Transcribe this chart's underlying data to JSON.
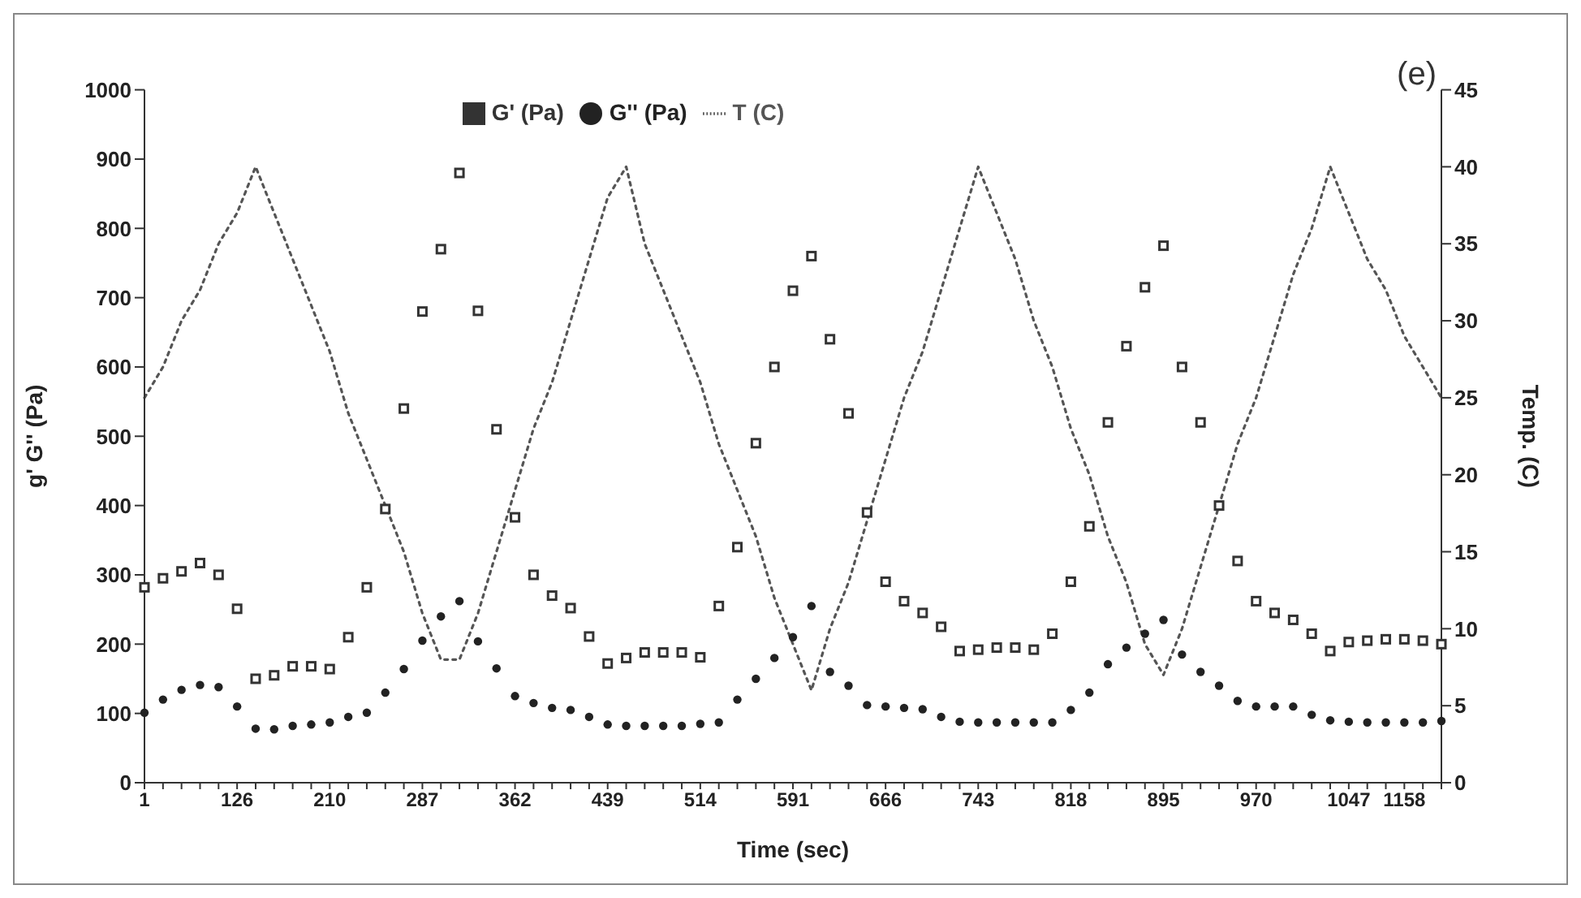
{
  "chart_data": {
    "type": "scatter",
    "xlabel": "Time (sec)",
    "ylabel": "g' G'' (Pa)",
    "y2label": "Temp. (C)",
    "annotations": [
      "(e)"
    ],
    "categories": [
      "1",
      null,
      null,
      null,
      null,
      "126",
      null,
      null,
      null,
      null,
      "210",
      null,
      null,
      null,
      null,
      "287",
      null,
      null,
      null,
      null,
      "362",
      null,
      null,
      null,
      null,
      "439",
      null,
      null,
      null,
      null,
      "514",
      null,
      null,
      null,
      null,
      "591",
      null,
      null,
      null,
      null,
      "666",
      null,
      null,
      null,
      null,
      "743",
      null,
      null,
      null,
      null,
      "818",
      null,
      null,
      null,
      null,
      "895",
      null,
      null,
      null,
      null,
      "970",
      null,
      null,
      null,
      null,
      "1047",
      null,
      null,
      "1158",
      null,
      null
    ],
    "ylim": [
      0,
      1000
    ],
    "yticks": [
      0,
      100,
      200,
      300,
      400,
      500,
      600,
      700,
      800,
      900,
      1000
    ],
    "y2lim": [
      0,
      45
    ],
    "y2ticks": [
      0,
      5,
      10,
      15,
      20,
      25,
      30,
      35,
      40,
      45
    ],
    "legend": "top",
    "series": [
      {
        "name": "G' (Pa)",
        "marker": "square",
        "color": "#333333",
        "values": [
          282,
          295,
          305,
          317,
          300,
          251,
          150,
          155,
          168,
          168,
          164,
          210,
          282,
          395,
          540,
          680,
          770,
          880,
          681,
          510,
          383,
          300,
          270,
          252,
          211,
          172,
          180,
          188,
          188,
          188,
          181,
          255,
          340,
          490,
          600,
          710,
          760,
          640,
          533,
          390,
          290,
          262,
          245,
          225,
          190,
          192,
          195,
          195,
          192,
          215,
          290,
          370,
          520,
          630,
          715,
          775,
          600,
          520,
          400,
          320,
          262,
          245,
          235,
          215,
          190,
          203,
          205,
          207,
          207,
          205,
          200
        ]
      },
      {
        "name": "G'' (Pa)",
        "marker": "circle",
        "color": "#222222",
        "values": [
          101,
          120,
          134,
          141,
          138,
          110,
          78,
          77,
          82,
          84,
          87,
          95,
          101,
          130,
          164,
          205,
          240,
          262,
          204,
          165,
          125,
          115,
          108,
          105,
          95,
          84,
          82,
          82,
          82,
          82,
          85,
          87,
          120,
          150,
          180,
          210,
          255,
          160,
          140,
          112,
          110,
          108,
          106,
          95,
          88,
          87,
          87,
          87,
          87,
          87,
          105,
          130,
          171,
          195,
          215,
          235,
          185,
          160,
          140,
          118,
          110,
          110,
          110,
          98,
          90,
          88,
          87,
          87,
          87,
          87,
          89
        ]
      },
      {
        "name": "T (C)",
        "type": "line",
        "axis": "y2",
        "marker": "none",
        "line_style": "dotted",
        "color": "#555555",
        "values": [
          25,
          27,
          30,
          32,
          35,
          37,
          40,
          37,
          34,
          31,
          28,
          24,
          21,
          18,
          15,
          11,
          8,
          8,
          11,
          15,
          19,
          23,
          26,
          30,
          34,
          38,
          40,
          35,
          32,
          29,
          26,
          22,
          19,
          16,
          12,
          9,
          6,
          10,
          13,
          17,
          21,
          25,
          28,
          32,
          36,
          40,
          37,
          34,
          30,
          27,
          23,
          20,
          16,
          13,
          9,
          7,
          10,
          14,
          18,
          22,
          25,
          29,
          33,
          36,
          40,
          37,
          34,
          32,
          29,
          27,
          25
        ]
      }
    ]
  }
}
